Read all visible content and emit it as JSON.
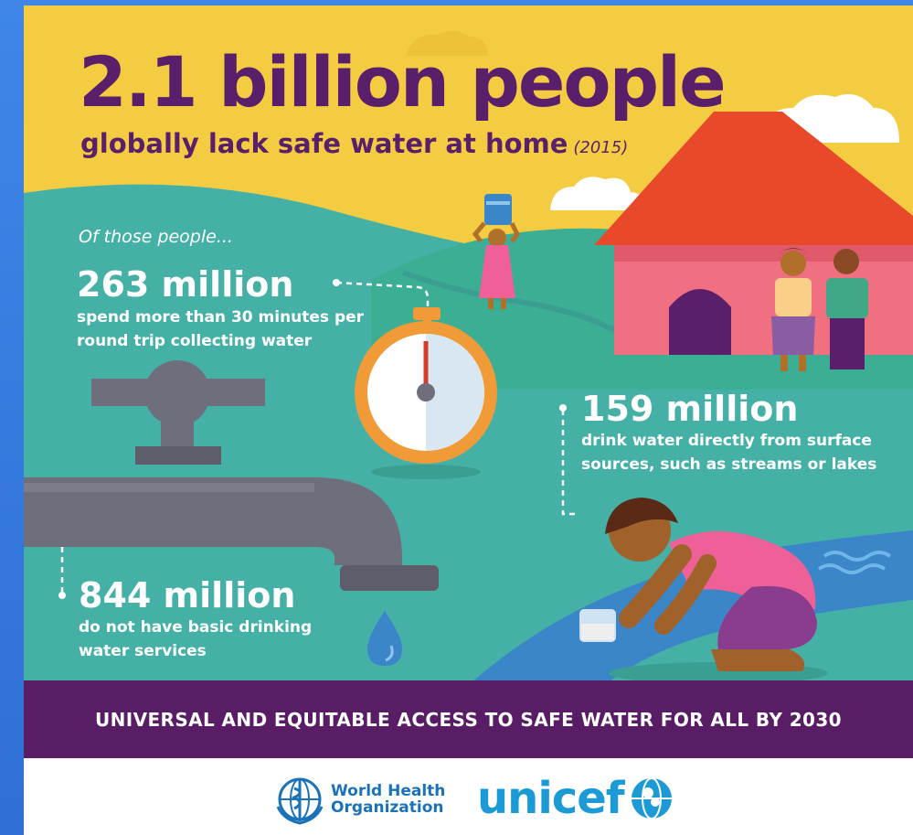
{
  "headline": {
    "main": "2.1 billion people",
    "sub": "globally lack safe water at home",
    "year": "(2015)"
  },
  "intro": "Of those people...",
  "stats": [
    {
      "value": "263 million",
      "desc": "spend more than 30 minutes per round trip collecting water"
    },
    {
      "value": "159 million",
      "desc": "drink water directly from surface sources, such as streams or lakes"
    },
    {
      "value": "844 million",
      "desc": "do not have basic drinking water services"
    }
  ],
  "goal": "UNIVERSAL AND EQUITABLE ACCESS TO SAFE WATER FOR ALL BY 2030",
  "logos": {
    "who_line1": "World Health",
    "who_line2": "Organization",
    "unicef": "unicef"
  },
  "colors": {
    "sky": "#f4cc42",
    "teal": "#45b1a6",
    "headline": "#5a1f6b",
    "band": "#591d66",
    "roof": "#e8492a",
    "house": "#f07081",
    "faucet": "#6f6e7d",
    "who_blue": "#1a72b8",
    "unicef_blue": "#1c9ad6"
  },
  "icons": [
    "faucet-icon",
    "stopwatch-icon",
    "house-icon",
    "water-drop-icon",
    "cloud-icon",
    "wave-icon"
  ]
}
